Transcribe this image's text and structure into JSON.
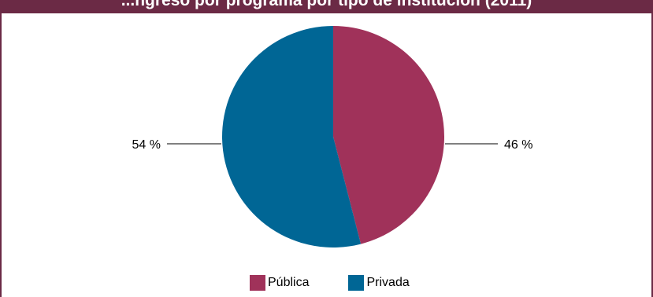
{
  "chart_data": {
    "type": "pie",
    "title": "...ngreso por programa por tipo de institución (2011)",
    "categories": [
      "Pública",
      "Privada"
    ],
    "values": [
      46,
      54
    ],
    "data_labels": [
      "46 %",
      "54 %"
    ],
    "colors": [
      "#a0325a",
      "#006695"
    ],
    "legend_position": "bottom"
  },
  "legend": {
    "items": [
      {
        "label": "Pública",
        "color": "#a0325a"
      },
      {
        "label": "Privada",
        "color": "#006695"
      }
    ]
  },
  "colors": {
    "title_bar": "#6b2a45",
    "frame": "#6b2a45",
    "leader_line": "#000000"
  }
}
